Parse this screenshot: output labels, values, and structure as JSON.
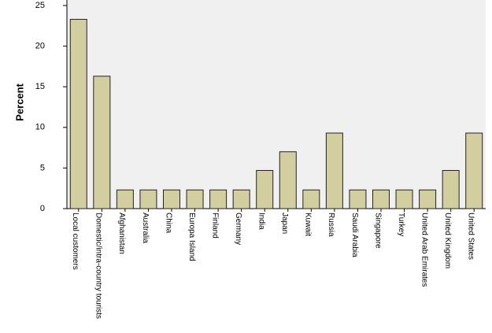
{
  "chart_data": {
    "type": "bar",
    "y_label": "Percent",
    "categories": [
      "Local customers",
      "Domestic/intra-country tourists",
      "Afghanistan",
      "Australia",
      "China",
      "Europa Island",
      "Finland",
      "Germany",
      "India",
      "Japan",
      "Kuwait",
      "Russia",
      "Saudi Arabia",
      "Singapore",
      "Turkey",
      "United Arab Emirates",
      "United Kingdom",
      "United States"
    ],
    "values": [
      23.3,
      16.3,
      2.3,
      2.3,
      2.3,
      2.3,
      2.3,
      2.3,
      4.7,
      7.0,
      2.3,
      9.3,
      2.3,
      2.3,
      2.3,
      2.3,
      4.7,
      9.3
    ],
    "color": "#d3cea0",
    "ylim": [
      0,
      25
    ],
    "yticks": [
      0,
      5,
      10,
      15,
      20,
      25
    ],
    "grid": false
  }
}
